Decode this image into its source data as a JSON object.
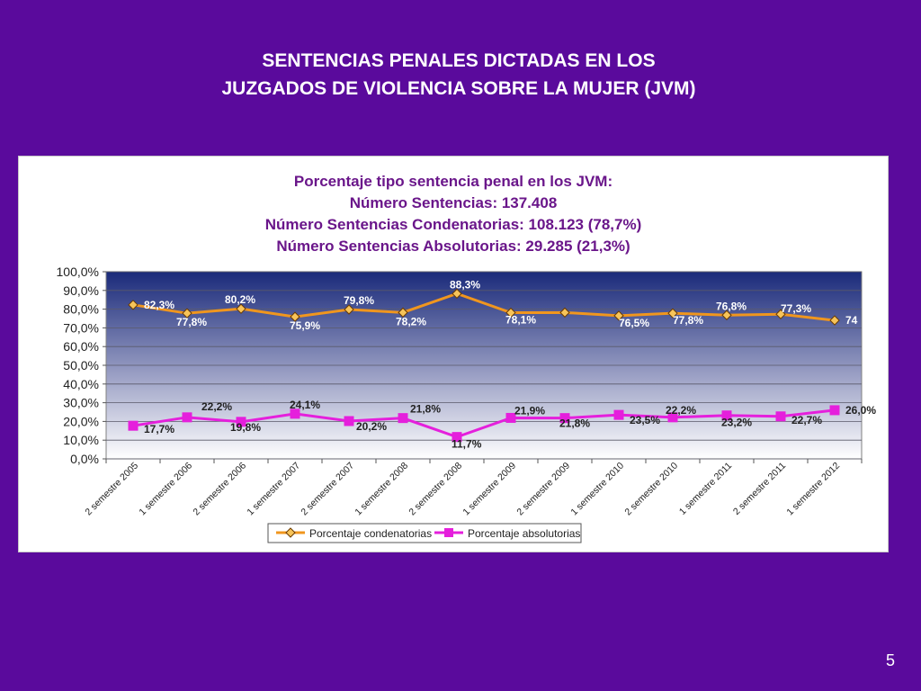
{
  "slide": {
    "title_line1": "SENTENCIAS PENALES DICTADAS EN LOS",
    "title_line2": "JUZGADOS DE VIOLENCIA SOBRE LA MUJER (JVM)",
    "page_number": "5"
  },
  "chart_data": {
    "type": "line",
    "title_lines": [
      "Porcentaje tipo sentencia penal en los JVM:",
      "Número Sentencias: 137.408",
      "Número Sentencias Condenatorias: 108.123 (78,7%)",
      "Número Sentencias Absolutorias:  29.285 (21,3%)"
    ],
    "categories": [
      "2 semestre 2005",
      "1 semestre 2006",
      "2 semestre 2006",
      "1 semestre 2007",
      "2 semestre 2007",
      "1 semestre 2008",
      "2 semestre 2008",
      "1 semestre 2009",
      "2 semestre 2009",
      "1 semestre 2010",
      "2 semestre 2010",
      "1 semestre 2011",
      "2 semestre 2011",
      "1 semestre 2012"
    ],
    "ylim": [
      0,
      100
    ],
    "yticks": [
      "0,0%",
      "10,0%",
      "20,0%",
      "30,0%",
      "40,0%",
      "50,0%",
      "60,0%",
      "70,0%",
      "80,0%",
      "90,0%",
      "100,0%"
    ],
    "grid": true,
    "legend_position": "bottom",
    "series": [
      {
        "name": "Porcentaje condenatorias",
        "color": "#f0961e",
        "marker": "diamond",
        "values": [
          82.3,
          77.8,
          80.2,
          75.9,
          79.8,
          78.2,
          88.3,
          78.1,
          78.2,
          76.5,
          77.8,
          76.8,
          77.3,
          74.0
        ],
        "labels": [
          "82,3%",
          "77,8%",
          "80,2%",
          "75,9%",
          "79,8%",
          "78,2%",
          "88,3%",
          "78,1%",
          "",
          "76,5%",
          "77,8%",
          "76,8%",
          "77,3%",
          "74"
        ]
      },
      {
        "name": "Porcentaje absolutorias",
        "color": "#e51fdc",
        "marker": "square",
        "values": [
          17.7,
          22.2,
          19.8,
          24.1,
          20.2,
          21.8,
          11.7,
          21.9,
          21.8,
          23.5,
          22.2,
          23.2,
          22.7,
          26.0
        ],
        "labels": [
          "17,7%",
          "22,2%",
          "19,8%",
          "24,1%",
          "20,2%",
          "21,8%",
          "11,7%",
          "21,9%",
          "21,8%",
          "23,5%",
          "22,2%",
          "23,2%",
          "22,7%",
          "26,0%"
        ]
      }
    ],
    "colors": {
      "plot_top": "#1a2a7a",
      "plot_bottom": "#ffffff",
      "title": "#6a168a"
    }
  }
}
